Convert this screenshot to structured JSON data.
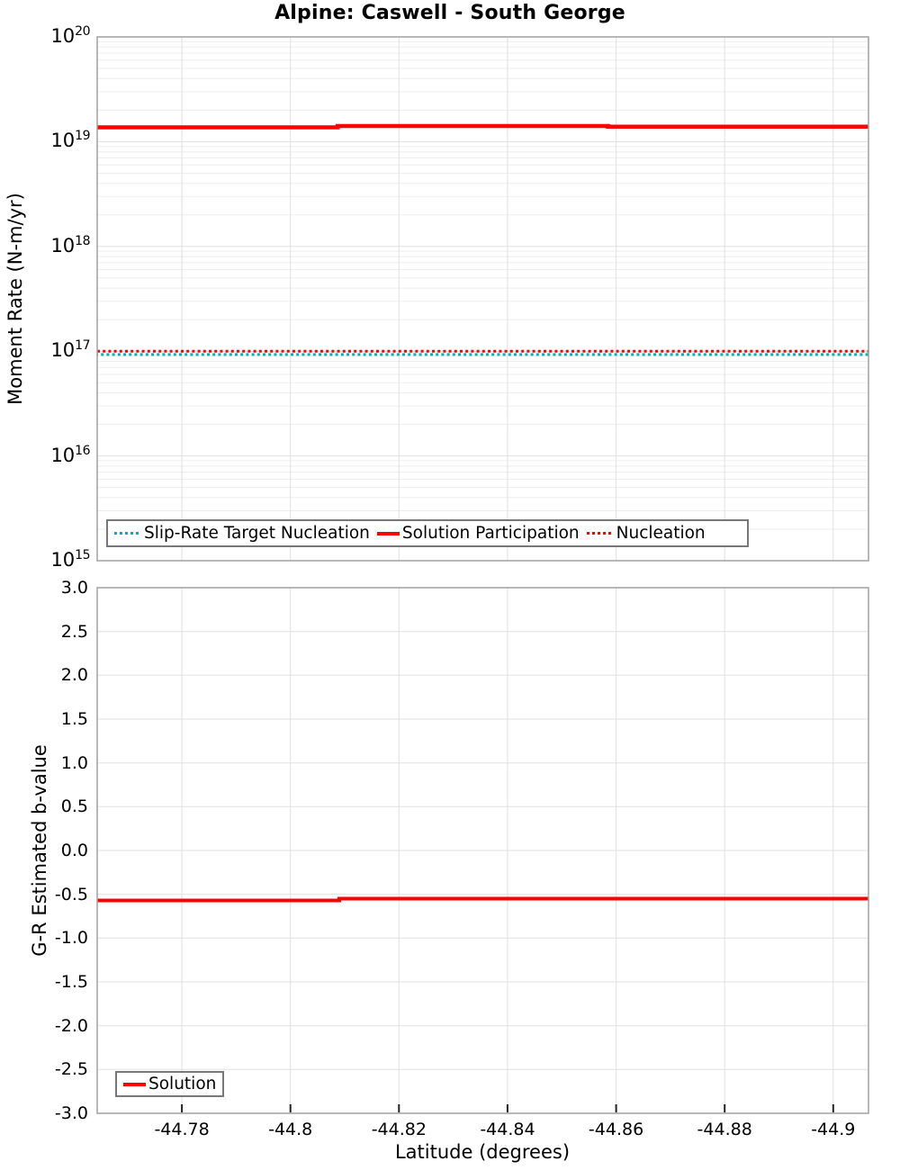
{
  "title": "Alpine: Caswell - South George",
  "colors": {
    "red": "#ff0000",
    "teal": "#00b2b2",
    "grid_minor": "#ededed",
    "grid_major": "#e0e0e0",
    "frame": "#a0a0a0",
    "tick": "#222222",
    "legend_border": "#787878"
  },
  "y_tick_base": "10",
  "chart_data": [
    {
      "type": "line",
      "panel": "moment-rate",
      "ylabel": "Moment Rate (N-m/yr)",
      "yscale": "log",
      "ylim": [
        1000000000000000.0,
        1e+20
      ],
      "y_tick_exponents": [
        20,
        19,
        18,
        17,
        16,
        15
      ],
      "xlim": [
        -44.7644,
        -44.9065
      ],
      "x_reversed": true,
      "grid": true,
      "x_ticks": [
        {
          "value": -44.78,
          "label": "-44.78"
        },
        {
          "value": -44.8,
          "label": "-44.8"
        },
        {
          "value": -44.82,
          "label": "-44.82"
        },
        {
          "value": -44.84,
          "label": "-44.84"
        },
        {
          "value": -44.86,
          "label": "-44.86"
        },
        {
          "value": -44.88,
          "label": "-44.88"
        },
        {
          "value": -44.9,
          "label": "-44.9"
        }
      ],
      "series": [
        {
          "name": "Slip-Rate Target Nucleation",
          "color": "#00b2b2",
          "style": "dotted",
          "width": 3,
          "points": [
            [
              -44.7644,
              9.3e+16
            ],
            [
              -44.9065,
              9.3e+16
            ]
          ]
        },
        {
          "name": "Nucleation",
          "color": "#ff0000",
          "style": "dotted",
          "width": 3,
          "points": [
            [
              -44.7644,
              1e+17
            ],
            [
              -44.9065,
              1e+17
            ]
          ]
        },
        {
          "name": "Solution Participation",
          "color": "#ff0000",
          "style": "solid",
          "width": 4.5,
          "points": [
            [
              -44.7644,
              1.37e+19
            ],
            [
              -44.8087,
              1.37e+19
            ],
            [
              -44.8087,
              1.41e+19
            ],
            [
              -44.8585,
              1.41e+19
            ],
            [
              -44.8585,
              1.39e+19
            ],
            [
              -44.9065,
              1.39e+19
            ]
          ]
        }
      ],
      "legend": [
        {
          "label": "Slip-Rate Target Nucleation",
          "color": "#00b2b2",
          "style": "dotted"
        },
        {
          "label": "Solution Participation",
          "color": "#ff0000",
          "style": "solid"
        },
        {
          "label": "Nucleation",
          "color": "#ff0000",
          "style": "dotted"
        }
      ],
      "legend_position": "inside-bottom-left"
    },
    {
      "type": "line",
      "panel": "b-value",
      "ylabel": "G-R Estimated b-value",
      "xlabel": "Latitude (degrees)",
      "yscale": "linear",
      "ylim": [
        -3.0,
        3.0
      ],
      "xlim": [
        -44.7644,
        -44.9065
      ],
      "x_reversed": true,
      "grid": true,
      "y_ticks": [
        {
          "value": 3.0,
          "label": "3.0"
        },
        {
          "value": 2.5,
          "label": "2.5"
        },
        {
          "value": 2.0,
          "label": "2.0"
        },
        {
          "value": 1.5,
          "label": "1.5"
        },
        {
          "value": 1.0,
          "label": "1.0"
        },
        {
          "value": 0.5,
          "label": "0.5"
        },
        {
          "value": 0.0,
          "label": "0.0"
        },
        {
          "value": -0.5,
          "label": "-0.5"
        },
        {
          "value": -1.0,
          "label": "-1.0"
        },
        {
          "value": -1.5,
          "label": "-1.5"
        },
        {
          "value": -2.0,
          "label": "-2.0"
        },
        {
          "value": -2.5,
          "label": "-2.5"
        },
        {
          "value": -3.0,
          "label": "-3.0"
        }
      ],
      "x_ticks": [
        {
          "value": -44.78,
          "label": "-44.78"
        },
        {
          "value": -44.8,
          "label": "-44.8"
        },
        {
          "value": -44.82,
          "label": "-44.82"
        },
        {
          "value": -44.84,
          "label": "-44.84"
        },
        {
          "value": -44.86,
          "label": "-44.86"
        },
        {
          "value": -44.88,
          "label": "-44.88"
        },
        {
          "value": -44.9,
          "label": "-44.9"
        }
      ],
      "series": [
        {
          "name": "Solution",
          "color": "#ff0000",
          "style": "solid",
          "width": 4,
          "points": [
            [
              -44.7644,
              -0.57
            ],
            [
              -44.809,
              -0.57
            ],
            [
              -44.809,
              -0.55
            ],
            [
              -44.9065,
              -0.55
            ]
          ]
        }
      ],
      "legend": [
        {
          "label": "Solution",
          "color": "#ff0000",
          "style": "solid"
        }
      ],
      "legend_position": "inside-bottom-left"
    }
  ]
}
